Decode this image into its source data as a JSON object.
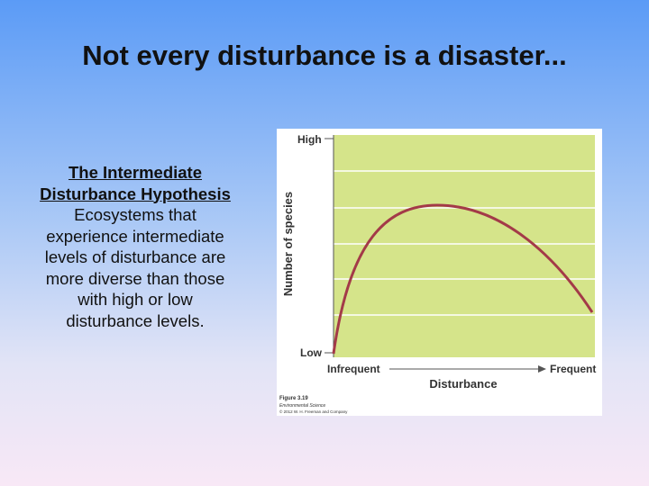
{
  "slide": {
    "title": "Not every disturbance is a disaster...",
    "heading": "The Intermediate Disturbance Hypothesis",
    "body": "Ecosystems that experience intermediate levels of disturbance are more diverse than those with high or low disturbance levels.",
    "figure": {
      "y_axis_label": "Number of species",
      "y_high": "High",
      "y_low": "Low",
      "x_left": "Infrequent",
      "x_right": "Frequent",
      "x_axis_label": "Disturbance",
      "caption": [
        "Figure 3.19",
        "Environmental Science",
        "© 2012 W. H. Freeman and Company"
      ]
    }
  }
}
